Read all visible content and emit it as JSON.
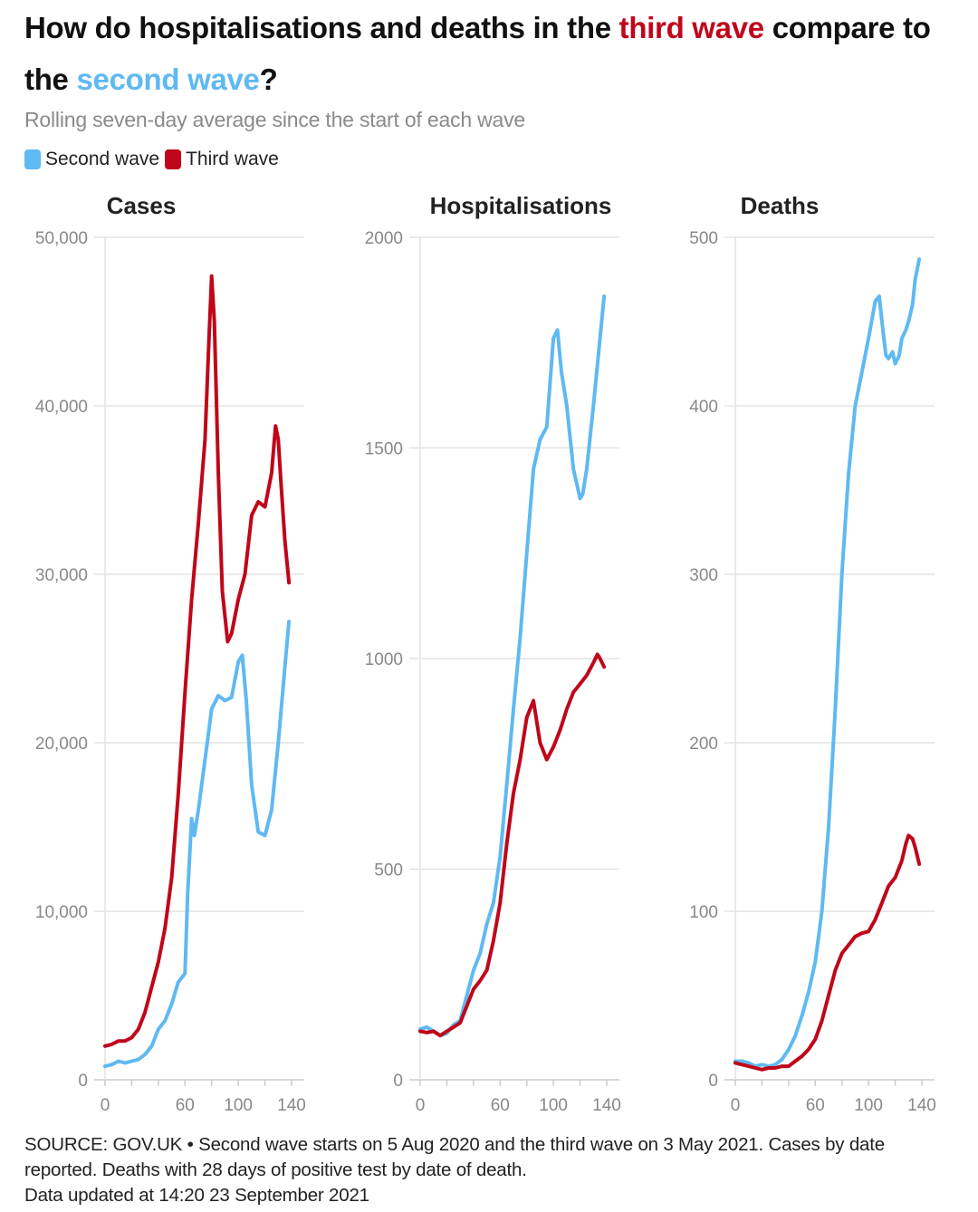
{
  "header": {
    "title_part1": "How do hospitalisations and deaths in the ",
    "title_third": "third wave",
    "title_part2": " compare to the ",
    "title_second": "second wave",
    "title_part3": "?",
    "subtitle": "Rolling seven-day average since the start of each wave"
  },
  "legend": {
    "second_label": "Second wave",
    "third_label": "Third wave"
  },
  "colors": {
    "second_wave": "#5fb9f2",
    "third_wave": "#c0061a",
    "grid": "#e3e3e3",
    "axis_text": "#888888"
  },
  "footer": {
    "source_line1": "SOURCE: GOV.UK • Second wave starts on 5 Aug 2020 and the third wave on 3 May 2021. Cases by date reported. Deaths with 28 days of positive test by date of death.",
    "source_line2": "Data updated at 14:20 23 September 2021"
  },
  "chart_data": [
    {
      "type": "line",
      "title": "Cases",
      "ylim": [
        0,
        50000
      ],
      "yticks": [
        0,
        10000,
        20000,
        30000,
        40000,
        50000
      ],
      "ytick_labels": [
        "0",
        "10,000",
        "20,000",
        "30,000",
        "40,000",
        "50,000"
      ],
      "xlim": [
        0,
        140
      ],
      "xticks": [
        0,
        60,
        100,
        140
      ],
      "series": [
        {
          "name": "Second wave",
          "x": [
            0,
            5,
            10,
            15,
            20,
            25,
            30,
            35,
            40,
            45,
            50,
            55,
            60,
            62,
            65,
            67,
            70,
            75,
            80,
            85,
            90,
            95,
            100,
            103,
            106,
            110,
            115,
            120,
            125,
            130,
            135,
            138
          ],
          "y": [
            800,
            900,
            1100,
            1000,
            1100,
            1200,
            1500,
            2000,
            3000,
            3500,
            4500,
            5800,
            6300,
            11000,
            15500,
            14500,
            16000,
            19000,
            22000,
            22800,
            22500,
            22700,
            24800,
            25200,
            22500,
            17500,
            14700,
            14500,
            16000,
            20000,
            24500,
            27200
          ]
        },
        {
          "name": "Third wave",
          "x": [
            0,
            5,
            10,
            15,
            20,
            25,
            30,
            35,
            40,
            45,
            50,
            55,
            60,
            65,
            70,
            75,
            78,
            80,
            82,
            85,
            88,
            92,
            95,
            100,
            105,
            110,
            115,
            120,
            125,
            128,
            130,
            132,
            135,
            138
          ],
          "y": [
            2000,
            2100,
            2300,
            2300,
            2500,
            3000,
            4000,
            5500,
            7000,
            9000,
            12000,
            17000,
            23000,
            28500,
            33000,
            38000,
            44000,
            47700,
            45000,
            36000,
            29000,
            26000,
            26500,
            28500,
            30000,
            33500,
            34300,
            34000,
            36000,
            38800,
            38000,
            35500,
            32000,
            29500
          ]
        }
      ]
    },
    {
      "type": "line",
      "title": "Hospitalisations",
      "ylim": [
        0,
        2000
      ],
      "yticks": [
        0,
        500,
        1000,
        1500,
        2000
      ],
      "ytick_labels": [
        "0",
        "500",
        "1000",
        "1500",
        "2000"
      ],
      "xlim": [
        0,
        140
      ],
      "xticks": [
        0,
        60,
        100,
        140
      ],
      "series": [
        {
          "name": "Second wave",
          "x": [
            0,
            5,
            10,
            15,
            20,
            25,
            30,
            35,
            40,
            45,
            50,
            55,
            60,
            65,
            70,
            75,
            80,
            85,
            90,
            95,
            100,
            103,
            106,
            110,
            115,
            120,
            122,
            125,
            130,
            135,
            138
          ],
          "y": [
            120,
            125,
            115,
            105,
            110,
            130,
            140,
            200,
            260,
            300,
            370,
            420,
            530,
            700,
            880,
            1050,
            1250,
            1450,
            1520,
            1550,
            1760,
            1780,
            1680,
            1600,
            1450,
            1380,
            1390,
            1450,
            1600,
            1760,
            1860
          ]
        },
        {
          "name": "Third wave",
          "x": [
            0,
            5,
            10,
            15,
            20,
            25,
            30,
            35,
            40,
            45,
            50,
            55,
            60,
            65,
            70,
            75,
            80,
            85,
            90,
            95,
            100,
            105,
            110,
            115,
            120,
            125,
            130,
            133,
            135,
            138
          ],
          "y": [
            115,
            112,
            115,
            105,
            115,
            125,
            135,
            175,
            215,
            235,
            260,
            330,
            420,
            560,
            680,
            760,
            860,
            900,
            800,
            760,
            790,
            830,
            880,
            920,
            940,
            960,
            990,
            1010,
            1000,
            980
          ]
        }
      ]
    },
    {
      "type": "line",
      "title": "Deaths",
      "ylim": [
        0,
        500
      ],
      "yticks": [
        0,
        100,
        200,
        300,
        400,
        500
      ],
      "ytick_labels": [
        "0",
        "100",
        "200",
        "300",
        "400",
        "500"
      ],
      "xlim": [
        0,
        140
      ],
      "xticks": [
        0,
        60,
        100,
        140
      ],
      "series": [
        {
          "name": "Second wave",
          "x": [
            0,
            5,
            10,
            15,
            20,
            25,
            30,
            35,
            40,
            45,
            50,
            55,
            60,
            65,
            70,
            75,
            80,
            85,
            90,
            95,
            100,
            105,
            108,
            110,
            113,
            115,
            118,
            120,
            123,
            125,
            128,
            130,
            133,
            135,
            138
          ],
          "y": [
            11,
            11,
            10,
            8,
            9,
            8,
            9,
            12,
            18,
            26,
            38,
            52,
            70,
            100,
            150,
            220,
            300,
            360,
            400,
            420,
            440,
            462,
            465,
            450,
            430,
            428,
            432,
            425,
            430,
            440,
            445,
            450,
            460,
            475,
            487
          ]
        },
        {
          "name": "Third wave",
          "x": [
            0,
            5,
            10,
            15,
            20,
            25,
            30,
            35,
            40,
            45,
            50,
            55,
            60,
            65,
            70,
            75,
            80,
            85,
            90,
            95,
            100,
            105,
            110,
            115,
            120,
            125,
            128,
            130,
            133,
            135,
            138
          ],
          "y": [
            10,
            9,
            8,
            7,
            6,
            7,
            7,
            8,
            8,
            11,
            14,
            18,
            24,
            35,
            50,
            65,
            75,
            80,
            85,
            87,
            88,
            95,
            105,
            115,
            120,
            130,
            140,
            145,
            143,
            138,
            128
          ]
        }
      ]
    }
  ]
}
